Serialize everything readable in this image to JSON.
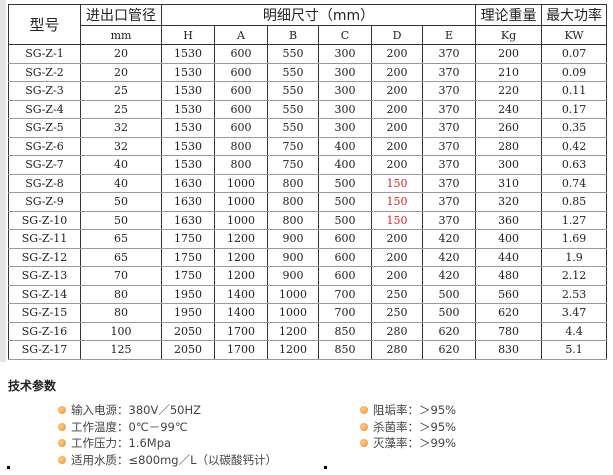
{
  "table": {
    "header1": {
      "model": "型号",
      "pipe": "进出口管径",
      "dims": "明细尺寸（mm）",
      "weight": "理论重量",
      "power": "最大功率"
    },
    "header2": [
      "mm",
      "H",
      "A",
      "B",
      "C",
      "D",
      "E",
      "Kg",
      "KW"
    ],
    "rows": [
      [
        "SG-Z-1",
        "20",
        "1530",
        "600",
        "550",
        "300",
        "200",
        "370",
        "200",
        "0.07"
      ],
      [
        "SG-Z-2",
        "20",
        "1530",
        "600",
        "550",
        "300",
        "200",
        "370",
        "210",
        "0.09"
      ],
      [
        "SG-Z-3",
        "25",
        "1530",
        "600",
        "550",
        "300",
        "200",
        "370",
        "220",
        "0.11"
      ],
      [
        "SG-Z-4",
        "25",
        "1530",
        "600",
        "550",
        "300",
        "200",
        "370",
        "240",
        "0.17"
      ],
      [
        "SG-Z-5",
        "32",
        "1530",
        "600",
        "550",
        "300",
        "200",
        "370",
        "260",
        "0.35"
      ],
      [
        "SG-Z-6",
        "32",
        "1530",
        "800",
        "750",
        "400",
        "200",
        "370",
        "280",
        "0.42"
      ],
      [
        "SG-Z-7",
        "40",
        "1530",
        "800",
        "750",
        "400",
        "200",
        "370",
        "300",
        "0.63"
      ],
      [
        "SG-Z-8",
        "40",
        "1630",
        "1000",
        "800",
        "500",
        "150",
        "370",
        "310",
        "0.74"
      ],
      [
        "SG-Z-9",
        "50",
        "1630",
        "1000",
        "800",
        "500",
        "150",
        "370",
        "320",
        "0.85"
      ],
      [
        "SG-Z-10",
        "50",
        "1630",
        "1000",
        "800",
        "500",
        "150",
        "370",
        "360",
        "1.27"
      ],
      [
        "SG-Z-11",
        "65",
        "1750",
        "1200",
        "900",
        "600",
        "200",
        "420",
        "400",
        "1.69"
      ],
      [
        "SG-Z-12",
        "65",
        "1750",
        "1200",
        "900",
        "600",
        "200",
        "420",
        "440",
        "1.9"
      ],
      [
        "SG-Z-13",
        "70",
        "1750",
        "1200",
        "900",
        "600",
        "200",
        "420",
        "480",
        "2.12"
      ],
      [
        "SG-Z-14",
        "80",
        "1950",
        "1400",
        "1000",
        "700",
        "250",
        "500",
        "560",
        "2.53"
      ],
      [
        "SG-Z-15",
        "80",
        "1950",
        "1400",
        "1000",
        "700",
        "250",
        "500",
        "620",
        "3.47"
      ],
      [
        "SG-Z-16",
        "100",
        "2050",
        "1700",
        "1200",
        "850",
        "280",
        "620",
        "780",
        "4.4"
      ],
      [
        "SG-Z-17",
        "125",
        "2050",
        "1700",
        "1200",
        "850",
        "280",
        "620",
        "830",
        "5.1"
      ]
    ],
    "highlight_color": "#e0202a",
    "highlight_rows": [
      7,
      8,
      9
    ]
  },
  "section_title": "技术参数",
  "params_left": [
    "输入电源：380V／50HZ",
    "工作温度：0℃－99℃",
    "工作压力：1.6Mpa",
    "适用水质：≤800mg／L（以碳酸钙计）"
  ],
  "params_right": [
    "阻垢率：＞95%",
    "杀菌率：＞95%",
    "灭藻率：＞99%"
  ]
}
